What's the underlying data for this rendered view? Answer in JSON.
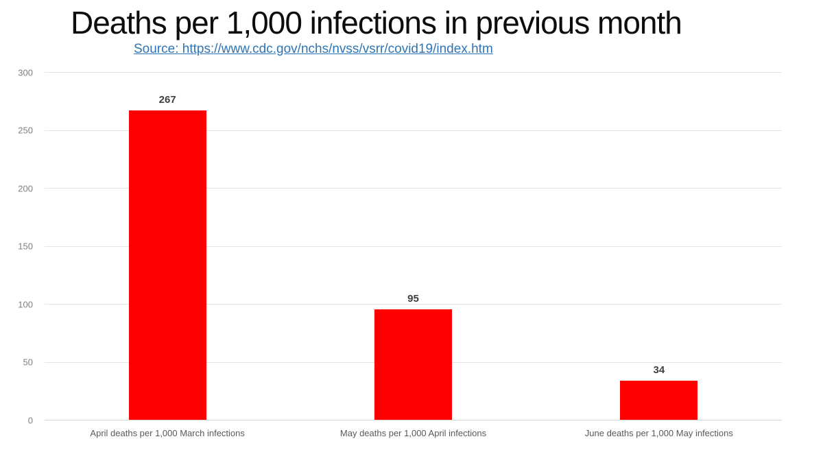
{
  "title": "Deaths per 1,000 infections in previous month",
  "source": {
    "label": "Source: https://www.cdc.gov/nchs/nvss/vsrr/covid19/index.htm",
    "href_text": "https://www.cdc.gov/nchs/nvss/vsrr/covid19/index.htm"
  },
  "colors": {
    "background": "#FFFFFF",
    "title_text": "#0D0D0D",
    "link_blue": "#2E74B5",
    "bar_red": "#FF0000",
    "gridline": "#E3E3E3",
    "axis_baseline": "#D6D6D6",
    "y_tick_label": "#808080",
    "value_label": "#404040",
    "category_label": "#595959"
  },
  "chart_data": {
    "type": "bar",
    "title": "Deaths per 1,000 infections in previous month",
    "subtitle": "Source: https://www.cdc.gov/nchs/nvss/vsrr/covid19/index.htm",
    "categories": [
      "April deaths per 1,000 March infections",
      "May deaths per 1,000 April infections",
      "June deaths per 1,000 May infections"
    ],
    "values": [
      267,
      95,
      34
    ],
    "value_labels": [
      "267",
      "95",
      "34"
    ],
    "xlabel": "",
    "ylabel": "",
    "ylim": [
      0,
      300
    ],
    "yticks": [
      0,
      50,
      100,
      150,
      200,
      250,
      300
    ],
    "grid": true,
    "legend": false,
    "bar_color": "#FF0000",
    "data_labels_position": "above-bars"
  }
}
